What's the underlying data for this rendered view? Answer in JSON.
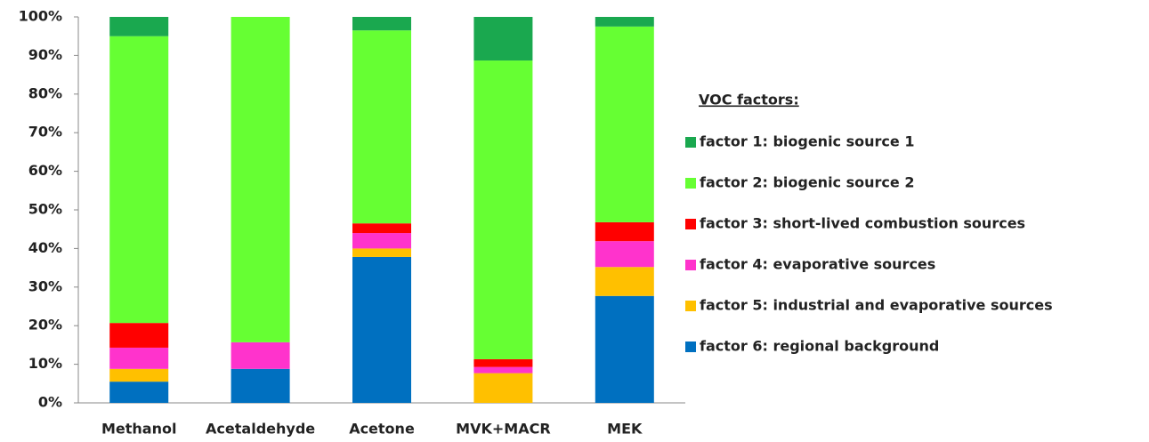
{
  "chart_data": {
    "type": "stacked_bar",
    "categories": [
      "Methanol",
      "Acetaldehyde",
      "Acetone",
      "MVK+MACR",
      "MEK"
    ],
    "legend_title": "VOC factors:",
    "series": [
      {
        "name": "factor 1: biogenic source 1",
        "color": "#1aa84f",
        "values": [
          5.0,
          0,
          3.5,
          11.3,
          2.5
        ]
      },
      {
        "name": "factor 2: biogenic source 2",
        "color": "#66ff33",
        "values": [
          74.3,
          84.3,
          50.0,
          77.4,
          50.7
        ]
      },
      {
        "name": "factor 3: short-lived combustion sources",
        "color": "#ff0000",
        "values": [
          6.4,
          0,
          2.5,
          2.0,
          4.9
        ]
      },
      {
        "name": "factor 4: evaporative sources",
        "color": "#ff33cc",
        "values": [
          5.5,
          6.9,
          4.0,
          1.6,
          6.7
        ]
      },
      {
        "name": "factor 5: industrial and evaporative sources",
        "color": "#ffc000",
        "values": [
          3.3,
          0,
          2.2,
          7.7,
          7.5
        ]
      },
      {
        "name": "factor 6: regional background",
        "color": "#0070c0",
        "values": [
          5.5,
          8.8,
          37.8,
          0,
          27.7
        ]
      }
    ],
    "ylim": [
      0,
      100
    ],
    "yticks": [
      {
        "value": 0,
        "label": "0%"
      },
      {
        "value": 10,
        "label": "10%"
      },
      {
        "value": 20,
        "label": "20%"
      },
      {
        "value": 30,
        "label": "30%"
      },
      {
        "value": 40,
        "label": "40%"
      },
      {
        "value": 50,
        "label": "50%"
      },
      {
        "value": 60,
        "label": "60%"
      },
      {
        "value": 70,
        "label": "70%"
      },
      {
        "value": 80,
        "label": "80%"
      },
      {
        "value": 90,
        "label": "90%"
      },
      {
        "value": 100,
        "label": "100%"
      }
    ]
  }
}
